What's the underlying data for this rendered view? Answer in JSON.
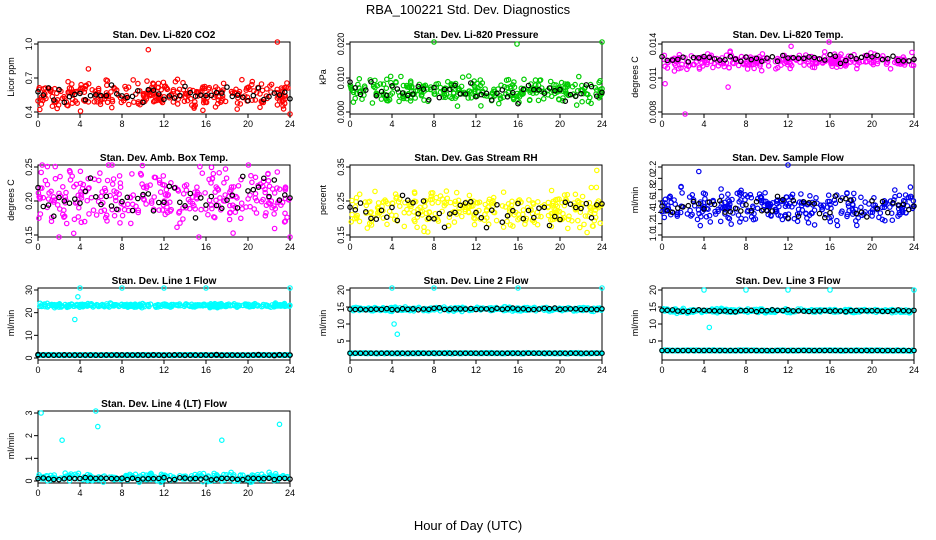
{
  "figure": {
    "title": "RBA_100221  Std. Dev. Diagnostics",
    "xlabel": "Hour of Day (UTC)",
    "colors": {
      "highlight": "#000000"
    }
  },
  "chart_data": [
    {
      "type": "scatter",
      "title": "Stan. Dev. Li-820 CO2",
      "ylabel": "Licor ppm",
      "xlim": [
        0,
        24
      ],
      "ylim": [
        0.4,
        1.0
      ],
      "xticks": [
        "0",
        "4",
        "8",
        "12",
        "16",
        "20",
        "24"
      ],
      "yticks": [
        "0.4",
        "0.7",
        "1.0"
      ],
      "color": "#ff0000",
      "n_points": 300,
      "mean": 0.56,
      "spread": 0.08,
      "hmean": 0.56,
      "hspread": 0.05,
      "outliers": [
        {
          "x": 10.5,
          "y": 0.95
        },
        {
          "x": 22.8,
          "y": 1.02
        },
        {
          "x": 4.8,
          "y": 0.78
        },
        {
          "x": 24.0,
          "y": 0.38
        }
      ]
    },
    {
      "type": "scatter",
      "title": "Stan. Dev. Li-820 Pressure",
      "ylabel": "kPa",
      "xlim": [
        0,
        24
      ],
      "ylim": [
        0.0,
        0.02
      ],
      "xticks": [
        "0",
        "4",
        "8",
        "12",
        "16",
        "20",
        "24"
      ],
      "yticks": [
        "0.000",
        "0.010",
        "0.020"
      ],
      "color": "#00cc00",
      "n_points": 300,
      "mean": 0.006,
      "spread": 0.0025,
      "hmean": 0.006,
      "hspread": 0.002,
      "outliers": [
        {
          "x": 8.0,
          "y": 0.021
        },
        {
          "x": 15.9,
          "y": 0.02
        },
        {
          "x": 24.0,
          "y": 0.021
        }
      ]
    },
    {
      "type": "scatter",
      "title": "Stan. Dev. Li-820 Temp.",
      "ylabel": "degrees C",
      "xlim": [
        0,
        24
      ],
      "ylim": [
        0.008,
        0.014
      ],
      "xticks": [
        "0",
        "4",
        "8",
        "12",
        "16",
        "20",
        "24"
      ],
      "yticks": [
        "0.008",
        "0.011",
        "0.014"
      ],
      "color": "#ff00ff",
      "n_points": 260,
      "mean": 0.0125,
      "spread": 0.0005,
      "hmean": 0.0127,
      "hspread": 0.0003,
      "outliers": [
        {
          "x": 0.3,
          "y": 0.0105
        },
        {
          "x": 2.2,
          "y": 0.0078
        },
        {
          "x": 6.3,
          "y": 0.0102
        },
        {
          "x": 12.3,
          "y": 0.0138
        },
        {
          "x": 15.9,
          "y": 0.0142
        }
      ]
    },
    {
      "type": "scatter",
      "title": "Stan. Dev. Amb. Box Temp.",
      "ylabel": "degrees C",
      "xlim": [
        0,
        24
      ],
      "ylim": [
        0.15,
        0.25
      ],
      "xticks": [
        "0",
        "4",
        "8",
        "12",
        "16",
        "20",
        "24"
      ],
      "yticks": [
        "0.15",
        "0.20",
        "0.25"
      ],
      "color": "#ff00ff",
      "n_points": 300,
      "mean": 0.205,
      "spread": 0.03,
      "hmean": 0.205,
      "hspread": 0.02,
      "outliers": [
        {
          "x": 2.0,
          "y": 0.123
        },
        {
          "x": 24.0,
          "y": 0.13
        }
      ]
    },
    {
      "type": "scatter",
      "title": "Stan. Dev. Gas Stream RH",
      "ylabel": "percent",
      "xlim": [
        0,
        24
      ],
      "ylim": [
        0.15,
        0.35
      ],
      "xticks": [
        "0",
        "4",
        "8",
        "12",
        "16",
        "20",
        "24"
      ],
      "yticks": [
        "0.15",
        "0.25",
        "0.35"
      ],
      "color": "#ffff00",
      "n_points": 300,
      "mean": 0.225,
      "spread": 0.04,
      "hmean": 0.22,
      "hspread": 0.03,
      "outliers": [
        {
          "x": 23.5,
          "y": 0.34
        }
      ]
    },
    {
      "type": "scatter",
      "title": "Stan. Dev. Sample Flow",
      "ylabel": "ml/min",
      "xlim": [
        0,
        24
      ],
      "ylim": [
        1.0,
        2.2
      ],
      "xticks": [
        "0",
        "4",
        "8",
        "12",
        "16",
        "20",
        "24"
      ],
      "yticks": [
        "1.0",
        "1.2",
        "1.4",
        "1.6",
        "1.8",
        "2.0",
        "2.2"
      ],
      "color": "#0000ee",
      "n_points": 300,
      "mean": 1.5,
      "spread": 0.2,
      "hmean": 1.5,
      "hspread": 0.15,
      "outliers": [
        {
          "x": 12.0,
          "y": 2.25
        },
        {
          "x": 3.5,
          "y": 2.12
        }
      ]
    },
    {
      "type": "scatter",
      "title": "Stan. Dev. Line 1 Flow",
      "ylabel": "ml/min",
      "xlim": [
        0,
        24
      ],
      "ylim": [
        0,
        30
      ],
      "xticks": [
        "0",
        "4",
        "8",
        "12",
        "16",
        "20",
        "24"
      ],
      "yticks": [
        "0",
        "10",
        "20",
        "30"
      ],
      "color": "#00ffff",
      "n_points": 320,
      "mean": 23.2,
      "spread": 0.6,
      "hmean": 1.3,
      "hspread": 0.15,
      "low_band": 1.3,
      "outliers": [
        {
          "x": 4.0,
          "y": 32
        },
        {
          "x": 8.0,
          "y": 32
        },
        {
          "x": 12.0,
          "y": 32
        },
        {
          "x": 16.0,
          "y": 32
        },
        {
          "x": 24.0,
          "y": 32
        },
        {
          "x": 3.5,
          "y": 17
        },
        {
          "x": 3.8,
          "y": 27
        }
      ]
    },
    {
      "type": "scatter",
      "title": "Stan. Dev. Line 2 Flow",
      "ylabel": "ml/min",
      "xlim": [
        0,
        24
      ],
      "ylim": [
        0,
        20
      ],
      "xticks": [
        "0",
        "4",
        "8",
        "12",
        "16",
        "20",
        "24"
      ],
      "yticks": [
        "5",
        "10",
        "15",
        "20"
      ],
      "color": "#00ffff",
      "n_points": 320,
      "mean": 14.4,
      "spread": 0.4,
      "hmean": 14.4,
      "hspread": 0.2,
      "low_band": 1.4,
      "outliers": [
        {
          "x": 4.0,
          "y": 21
        },
        {
          "x": 8.0,
          "y": 21
        },
        {
          "x": 16.0,
          "y": 21
        },
        {
          "x": 24.0,
          "y": 21
        },
        {
          "x": 4.5,
          "y": 7
        },
        {
          "x": 4.2,
          "y": 10
        }
      ]
    },
    {
      "type": "scatter",
      "title": "Stan. Dev. Line 3 Flow",
      "ylabel": "ml/min",
      "xlim": [
        0,
        24
      ],
      "ylim": [
        0,
        20
      ],
      "xticks": [
        "0",
        "4",
        "8",
        "12",
        "16",
        "20",
        "24"
      ],
      "yticks": [
        "5",
        "10",
        "15",
        "20"
      ],
      "color": "#00ffff",
      "n_points": 320,
      "mean": 13.9,
      "spread": 0.4,
      "hmean": 13.9,
      "hspread": 0.2,
      "low_band": 2.2,
      "outliers": [
        {
          "x": 4.0,
          "y": 20
        },
        {
          "x": 8.0,
          "y": 20
        },
        {
          "x": 12.0,
          "y": 20
        },
        {
          "x": 16.0,
          "y": 20
        },
        {
          "x": 24.0,
          "y": 20
        },
        {
          "x": 4.5,
          "y": 9
        }
      ]
    },
    {
      "type": "scatter",
      "title": "Stan. Dev. Line 4 (LT) Flow",
      "ylabel": "ml/min",
      "xlim": [
        0,
        24
      ],
      "ylim": [
        0,
        3
      ],
      "xticks": [
        "0",
        "4",
        "8",
        "12",
        "16",
        "20",
        "24"
      ],
      "yticks": [
        "0",
        "1",
        "2",
        "3"
      ],
      "color": "#00ffff",
      "n_points": 260,
      "mean": 0.15,
      "spread": 0.12,
      "hmean": 0.1,
      "hspread": 0.04,
      "outliers": [
        {
          "x": 0.3,
          "y": 3.0
        },
        {
          "x": 5.5,
          "y": 3.6
        },
        {
          "x": 5.7,
          "y": 2.4
        },
        {
          "x": 23.0,
          "y": 2.5
        },
        {
          "x": 17.5,
          "y": 1.8
        },
        {
          "x": 2.3,
          "y": 1.8
        }
      ]
    }
  ]
}
